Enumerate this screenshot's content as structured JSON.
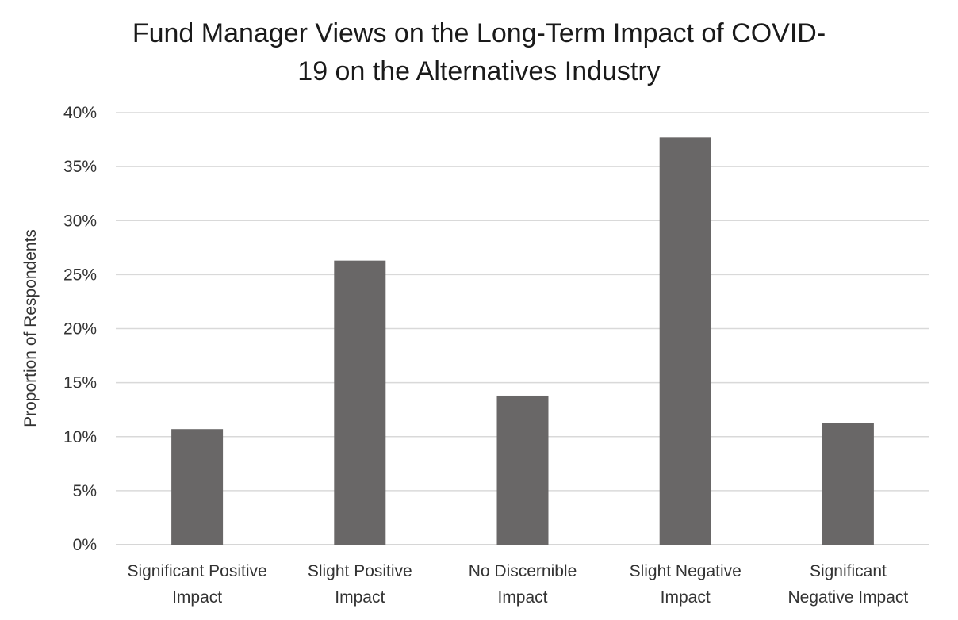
{
  "chart_data": {
    "type": "bar",
    "title_lines": [
      "Fund Manager Views on the Long-Term Impact of COVID-",
      "19 on the Alternatives Industry"
    ],
    "ylabel": "Proportion of Respondents",
    "xlabel": "",
    "categories": [
      [
        "Significant Positive",
        "Impact"
      ],
      [
        "Slight Positive",
        "Impact"
      ],
      [
        "No Discernible",
        "Impact"
      ],
      [
        "Slight Negative",
        "Impact"
      ],
      [
        "Significant",
        "Negative Impact"
      ]
    ],
    "values": [
      10.7,
      26.3,
      13.8,
      37.7,
      11.3
    ],
    "ylim": [
      0,
      40
    ],
    "yticks": [
      "0%",
      "5%",
      "10%",
      "15%",
      "20%",
      "25%",
      "30%",
      "35%",
      "40%"
    ],
    "ytick_values": [
      0,
      5,
      10,
      15,
      20,
      25,
      30,
      35,
      40
    ],
    "grid": true,
    "legend": "none",
    "bar_color": "#696767",
    "grid_color": "#d9d9d9"
  }
}
